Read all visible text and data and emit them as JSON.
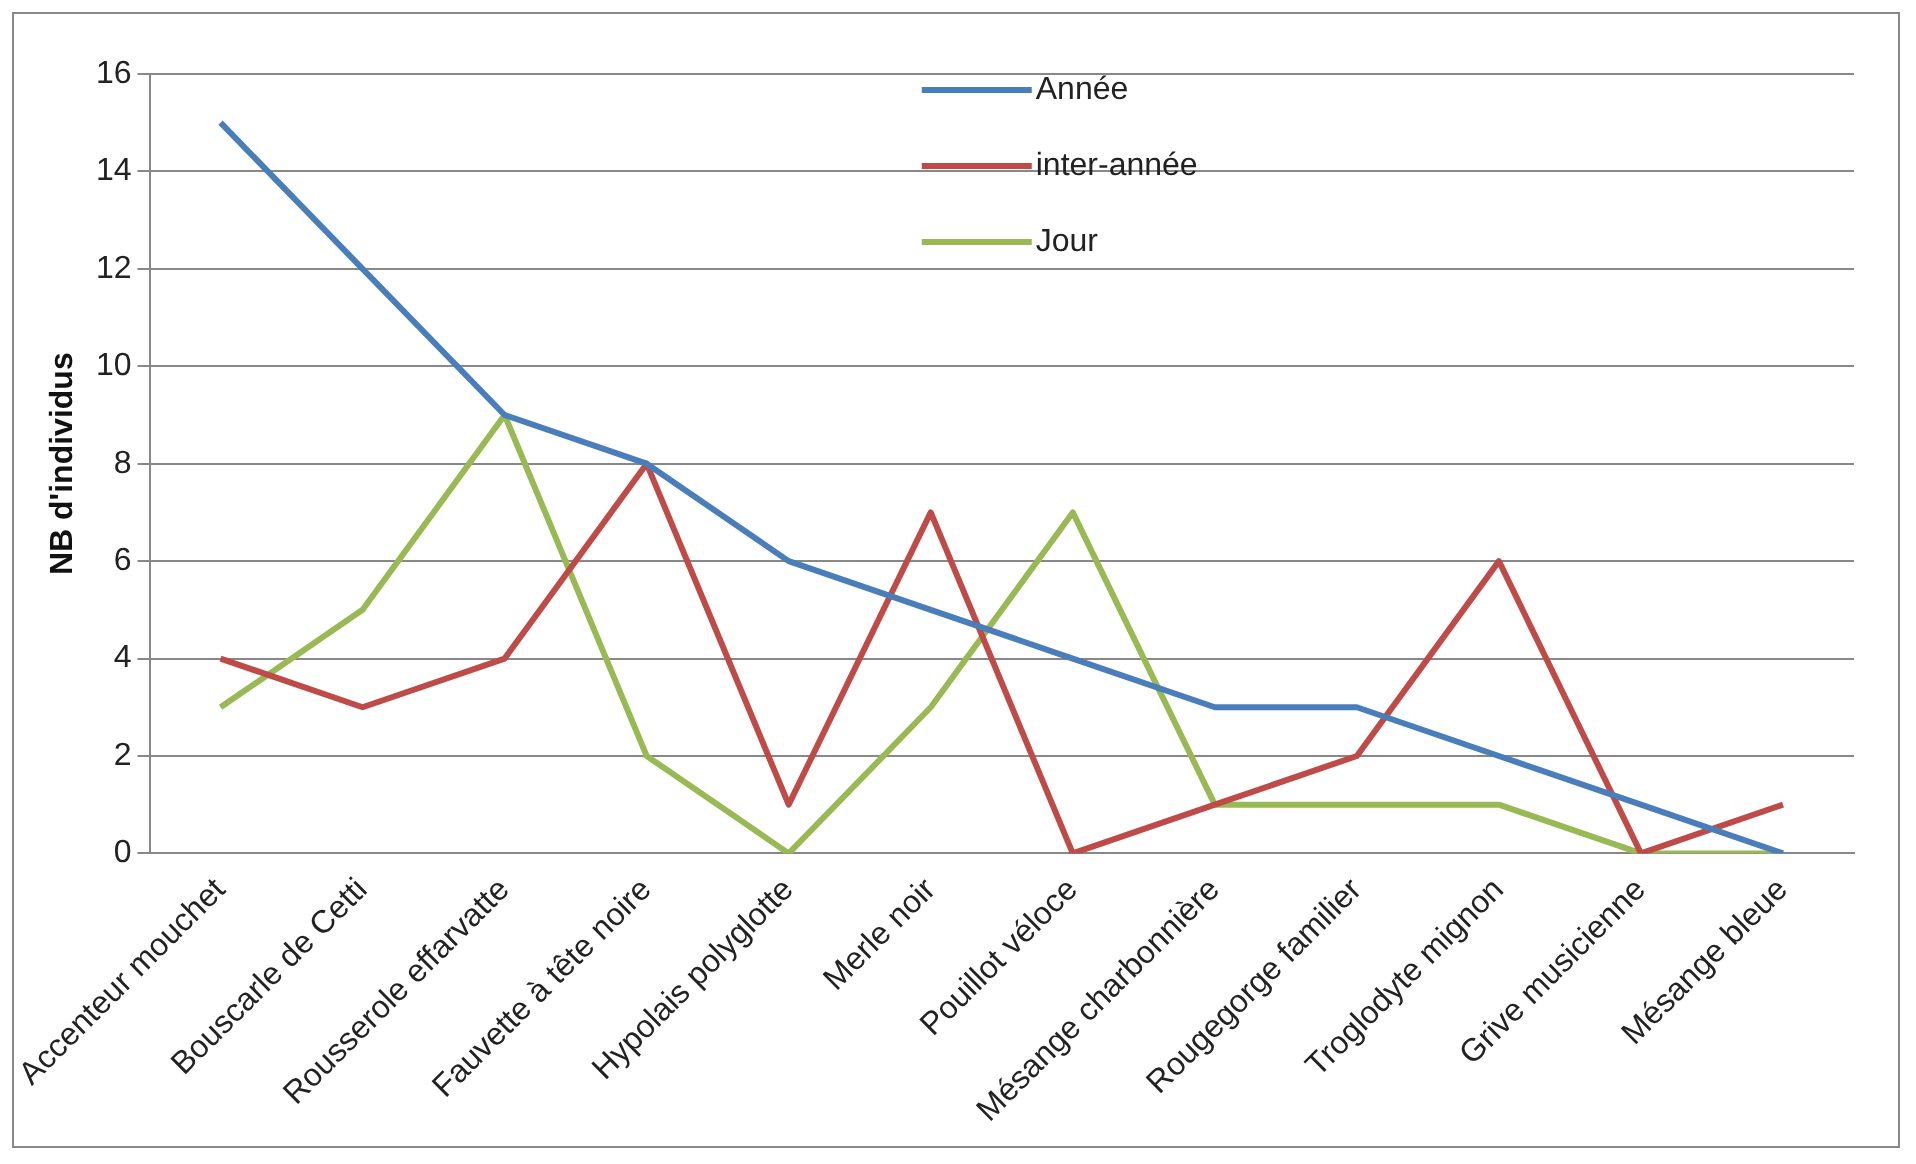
{
  "chart_data": {
    "type": "line",
    "ylabel": "NB d'individus",
    "categories": [
      "Accenteur mouchet",
      "Bouscarle de Cetti",
      "Rousserole effarvatte",
      "Fauvette à tête noire",
      "Hypolais polyglotte",
      "Merle noir",
      "Pouillot véloce",
      "Mésange charbonnière",
      "Rougegorge familier",
      "Troglodyte mignon",
      "Grive musicienne",
      "Mésange bleue"
    ],
    "series": [
      {
        "name": "Année",
        "color": "#4a7ebb",
        "values": [
          15,
          12,
          9,
          8,
          6,
          5,
          4,
          3,
          3,
          2,
          1,
          0
        ]
      },
      {
        "name": "inter-année",
        "color": "#be4b48",
        "values": [
          4,
          3,
          4,
          8,
          1,
          7,
          0,
          1,
          2,
          6,
          0,
          1
        ]
      },
      {
        "name": "Jour",
        "color": "#98b954",
        "values": [
          3,
          5,
          9,
          2,
          0,
          3,
          7,
          1,
          1,
          1,
          0,
          0
        ]
      }
    ],
    "ylim": [
      0,
      16
    ],
    "yticks": [
      0,
      2,
      4,
      6,
      8,
      10,
      12,
      14,
      16
    ],
    "grid": "y",
    "legend": "top",
    "marker": "none"
  }
}
